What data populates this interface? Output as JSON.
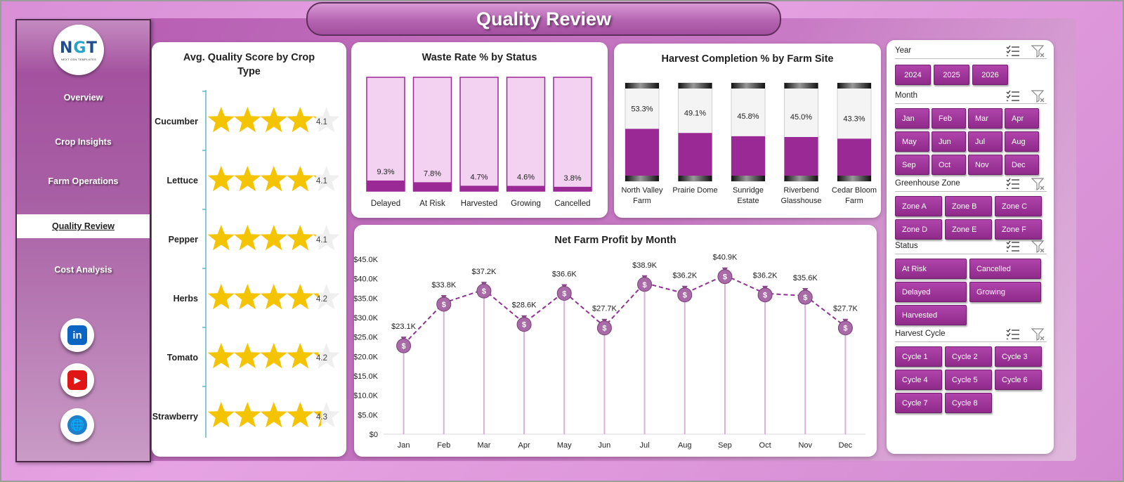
{
  "title": "Quality Review",
  "logo": {
    "main_left": "N",
    "main_mid": "G",
    "main_right": "T",
    "sub": "NEXT GEN TEMPLATES"
  },
  "nav": [
    {
      "label": "Overview"
    },
    {
      "label": "Crop Insights"
    },
    {
      "label": "Farm Operations"
    },
    {
      "label": "Quality Review"
    },
    {
      "label": "Cost Analysis"
    }
  ],
  "social": {
    "linkedin": "in",
    "youtube": "▶",
    "web": "🌐"
  },
  "colors": {
    "accent": "#9a2895",
    "accent_light": "#f3d2f1",
    "star": "#f5c400",
    "line": "#8f3390"
  },
  "quality_chart": {
    "title": "Avg. Quality Score by Crop Type",
    "chart_data": {
      "type": "bar",
      "categories": [
        "Cucumber",
        "Lettuce",
        "Pepper",
        "Herbs",
        "Tomato",
        "Strawberry"
      ],
      "values": [
        4.1,
        4.1,
        4.1,
        4.2,
        4.2,
        4.3
      ],
      "value_labels": [
        "4.1",
        "4.1",
        "4.1",
        "4.2",
        "4.2",
        "4.3"
      ],
      "max": 5
    }
  },
  "waste_chart": {
    "title": "Waste Rate % by Status",
    "chart_data": {
      "type": "bar",
      "categories": [
        "Delayed",
        "At Risk",
        "Harvested",
        "Growing",
        "Cancelled"
      ],
      "values": [
        9.3,
        7.8,
        4.7,
        4.6,
        3.8
      ],
      "value_labels": [
        "9.3%",
        "7.8%",
        "4.7%",
        "4.6%",
        "3.8%"
      ],
      "ylim": [
        0,
        100
      ]
    }
  },
  "harvest_chart": {
    "title": "Harvest Completion % by Farm Site",
    "chart_data": {
      "type": "bar",
      "categories": [
        [
          "North Valley",
          "Farm"
        ],
        [
          "Prairie Dome",
          ""
        ],
        [
          "Sunridge",
          "Estate"
        ],
        [
          "Riverbend",
          "Glasshouse"
        ],
        [
          "Cedar Bloom",
          "Farm"
        ]
      ],
      "values": [
        53.3,
        49.1,
        45.8,
        45.0,
        43.3
      ],
      "value_labels": [
        "53.3%",
        "49.1%",
        "45.8%",
        "45.0%",
        "43.3%"
      ],
      "ylim": [
        0,
        100
      ]
    }
  },
  "profit_chart": {
    "title": "Net Farm Profit by Month",
    "chart_data": {
      "type": "line",
      "categories": [
        "Jan",
        "Feb",
        "Mar",
        "Apr",
        "May",
        "Jun",
        "Jul",
        "Aug",
        "Sep",
        "Oct",
        "Nov",
        "Dec"
      ],
      "values": [
        23.1,
        33.8,
        37.2,
        28.6,
        36.6,
        27.7,
        38.9,
        36.2,
        40.9,
        36.2,
        35.6,
        27.7
      ],
      "value_labels": [
        "$23.1K",
        "$33.8K",
        "$37.2K",
        "$28.6K",
        "$36.6K",
        "$27.7K",
        "$38.9K",
        "$36.2K",
        "$40.9K",
        "$36.2K",
        "$35.6K",
        "$27.7K"
      ],
      "yticks": [
        "$0",
        "$5.0K",
        "$10.0K",
        "$15.0K",
        "$20.0K",
        "$25.0K",
        "$30.0K",
        "$35.0K",
        "$40.0K",
        "$45.0K"
      ],
      "ylim": [
        0,
        45
      ]
    }
  },
  "slicers": {
    "year": {
      "label": "Year",
      "items": [
        "2024",
        "2025",
        "2026"
      ]
    },
    "month": {
      "label": "Month",
      "items": [
        "Jan",
        "Feb",
        "Mar",
        "Apr",
        "May",
        "Jun",
        "Jul",
        "Aug",
        "Sep",
        "Oct",
        "Nov",
        "Dec"
      ]
    },
    "zone": {
      "label": "Greenhouse Zone",
      "items": [
        "Zone A",
        "Zone B",
        "Zone C",
        "Zone D",
        "Zone E",
        "Zone F"
      ]
    },
    "status": {
      "label": "Status",
      "items": [
        "At Risk",
        "Cancelled",
        "Delayed",
        "Growing",
        "Harvested"
      ]
    },
    "cycle": {
      "label": "Harvest Cycle",
      "items": [
        "Cycle 1",
        "Cycle 2",
        "Cycle 3",
        "Cycle 4",
        "Cycle 5",
        "Cycle 6",
        "Cycle 7",
        "Cycle 8"
      ]
    }
  }
}
